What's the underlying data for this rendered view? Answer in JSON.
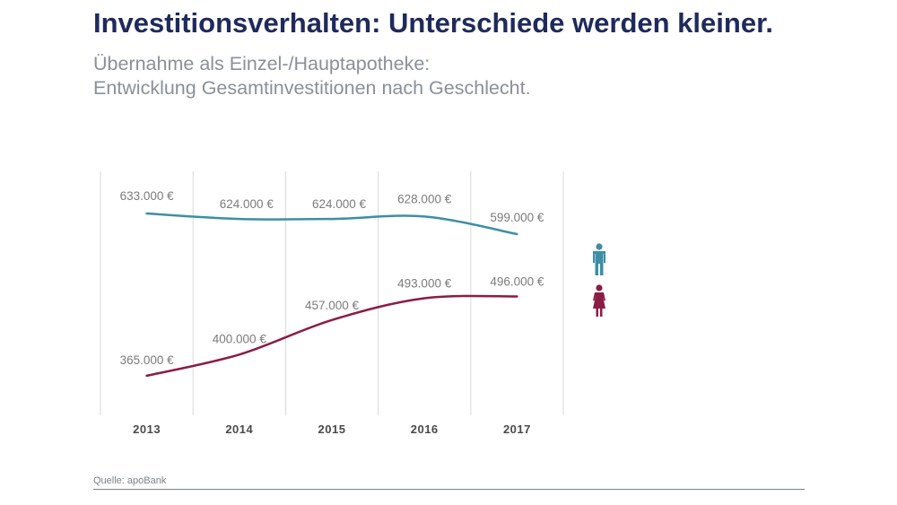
{
  "header": {
    "title": "Investitionsverhalten: Unterschiede werden kleiner.",
    "subtitle_line1": "Übernahme als Einzel-/Hauptapotheke:",
    "subtitle_line2": "Entwicklung Gesamtinvestitionen nach Geschlecht."
  },
  "footer": {
    "source": "Quelle: apoBank"
  },
  "colors": {
    "men": "#3e8ea5",
    "women": "#8b1c44",
    "grid": "#d9d9d9",
    "label": "#7b7b7b"
  },
  "legend": {
    "men_icon": "male-icon",
    "women_icon": "female-icon"
  },
  "chart_data": {
    "type": "line",
    "title": "Entwicklung Gesamtinvestitionen nach Geschlecht",
    "categories": [
      "2013",
      "2014",
      "2015",
      "2016",
      "2017"
    ],
    "series": [
      {
        "name": "Männer",
        "values": [
          633000,
          624000,
          624000,
          628000,
          599000
        ],
        "labels": [
          "633.000 €",
          "624.000 €",
          "624.000 €",
          "628.000 €",
          "599.000 €"
        ]
      },
      {
        "name": "Frauen",
        "values": [
          365000,
          400000,
          457000,
          493000,
          496000
        ],
        "labels": [
          "365.000 €",
          "400.000 €",
          "457.000 €",
          "493.000 €",
          "496.000 €"
        ]
      }
    ],
    "grid": "vertical",
    "legend": "right"
  }
}
